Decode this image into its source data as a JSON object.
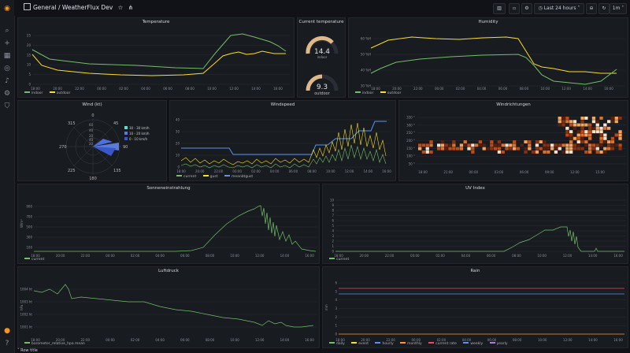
{
  "breadcrumb": {
    "folder": "General",
    "separator": "/",
    "dashboard": "WeatherFlux Dev"
  },
  "toolbar": {
    "time_range": "Last 24 hours",
    "refresh": "1m"
  },
  "colors": {
    "green": "#73bf69",
    "yellow": "#fade2a",
    "blue": "#5794f2",
    "red": "#f2495c",
    "orange": "#ff9830",
    "purple": "#b877d9",
    "accent": "#f79520"
  },
  "panels": {
    "temperature": {
      "title": "Temperature",
      "yticks": [
        "25",
        "20",
        "15",
        "10",
        "5",
        "0"
      ],
      "xticks": [
        "18:00",
        "20:00",
        "22:00",
        "00:00",
        "02:00",
        "04:00",
        "06:00",
        "08:00",
        "10:00",
        "12:00",
        "14:00",
        "16:00"
      ],
      "legend": [
        "indoor",
        "outdoor"
      ]
    },
    "current_temperature": {
      "title": "Current temperature",
      "gauges": [
        {
          "value": "14.4",
          "label": "indoor"
        },
        {
          "value": "9.3",
          "label": "outdoor"
        }
      ]
    },
    "humidity": {
      "title": "Humidity",
      "yticks": [
        "60 %H",
        "50 %H",
        "40 %H",
        "30 %H"
      ],
      "xticks": [
        "18:00",
        "20:00",
        "22:00",
        "00:00",
        "02:00",
        "04:00",
        "06:00",
        "08:00",
        "10:00",
        "12:00",
        "14:00",
        "16:00"
      ],
      "legend": [
        "indoor",
        "outdoor"
      ]
    },
    "wind": {
      "title": "Wind (kt)",
      "compass": [
        "0",
        "45",
        "90",
        "135",
        "180",
        "225",
        "270",
        "315"
      ],
      "rings": [
        "60",
        "40",
        "20",
        "40",
        "20"
      ],
      "legend": [
        "30 - 30 km/h",
        "10 - 20 km/h",
        "0 - 10 km/h"
      ]
    },
    "windspeed": {
      "title": "Windspeed",
      "yticks": [
        "40",
        "30",
        "20",
        "10",
        "0"
      ],
      "xticks": [
        "18:00",
        "20:00",
        "22:00",
        "00:00",
        "02:00",
        "04:00",
        "06:00",
        "08:00",
        "10:00",
        "12:00",
        "14:00",
        "16:00"
      ],
      "legend": [
        "current",
        "gust",
        "meanbtgust"
      ]
    },
    "wind_direction": {
      "title": "Windrichtungen",
      "yticks": [
        "350 °",
        "300 °",
        "250 °",
        "200 °",
        "150 °",
        "100 °",
        "50 °"
      ],
      "xticks": [
        "18:00",
        "21:00",
        "00:00",
        "03:00",
        "06:00",
        "09:00",
        "12:00",
        "15:00"
      ]
    },
    "solar": {
      "title": "Sonneneinstrahlung",
      "yticks": [
        "900",
        "700",
        "500",
        "300",
        "100"
      ],
      "ylabel": "W/m²",
      "xticks": [
        "18:00",
        "20:00",
        "22:00",
        "00:00",
        "02:00",
        "04:00",
        "06:00",
        "08:00",
        "10:00",
        "12:00",
        "14:00",
        "16:00"
      ],
      "legend": [
        "current"
      ]
    },
    "uv": {
      "title": "UV Index",
      "yticks": [
        "10",
        "9",
        "8",
        "7",
        "6",
        "5",
        "4",
        "3",
        "2",
        "1",
        "0"
      ],
      "xticks": [
        "18:00",
        "20:00",
        "22:00",
        "00:00",
        "02:00",
        "04:00",
        "06:00",
        "08:00",
        "10:00",
        "12:00",
        "14:00",
        "16:00"
      ],
      "legend": [
        "current"
      ]
    },
    "pressure": {
      "title": "Luftdruck",
      "yticks": [
        "1004 ht",
        "1003 ht",
        "1002 ht",
        "1001 ht"
      ],
      "ylabel": "hPa",
      "xticks": [
        "18:00",
        "20:00",
        "22:00",
        "00:00",
        "02:00",
        "04:00",
        "06:00",
        "08:00",
        "10:00",
        "12:00",
        "14:00",
        "16:00"
      ],
      "legend": [
        "barometer_relative_hpa mean"
      ]
    },
    "rain": {
      "title": "Rain",
      "yticks": [
        "6",
        "5",
        "4",
        "3",
        "2",
        "1",
        "0"
      ],
      "ylabel": "mm",
      "xticks": [
        "18:00",
        "20:00",
        "22:00",
        "00:00",
        "02:00",
        "04:00",
        "06:00",
        "08:00",
        "10:00",
        "12:00",
        "14:00",
        "16:00"
      ],
      "legend": [
        "daily",
        "event",
        "hourly",
        "monthly",
        "current rate",
        "weekly",
        "yearly"
      ]
    }
  },
  "row_title": "Row title"
}
